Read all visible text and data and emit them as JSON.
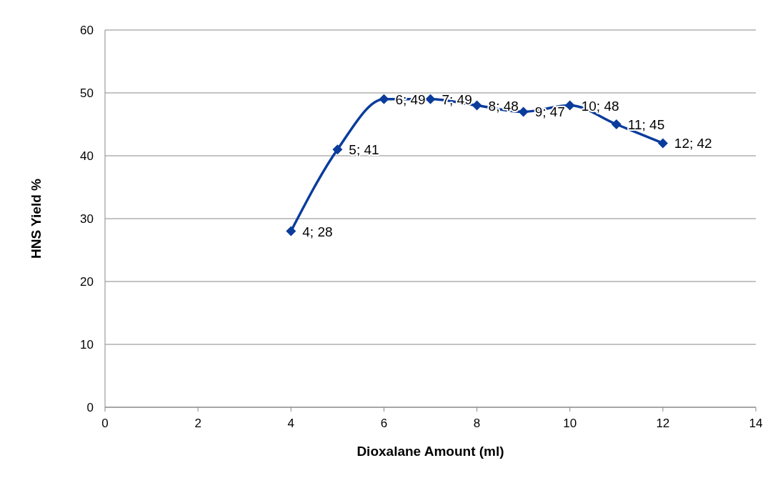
{
  "chart_data": {
    "type": "line",
    "xlabel": "Dioxalane  Amount (ml)",
    "ylabel": "HNS Yield %",
    "x": [
      4,
      5,
      6,
      7,
      8,
      9,
      10,
      11,
      12
    ],
    "series": [
      {
        "color": "#0b3c9c",
        "values": [
          28,
          41,
          49,
          49,
          48,
          47,
          48,
          45,
          42
        ],
        "value_labels": [
          "4; 28",
          "5; 41",
          "6; 49",
          "7; 49",
          "8; 48",
          "9; 47",
          "10; 48",
          "11; 45",
          "12; 42"
        ]
      }
    ],
    "xlim": [
      0,
      14
    ],
    "xticks": [
      0,
      2,
      4,
      6,
      8,
      10,
      12,
      14
    ],
    "ylim": [
      0,
      60
    ],
    "yticks": [
      0,
      10,
      20,
      30,
      40,
      50,
      60
    ],
    "grid": "y",
    "legend": false,
    "marker": "diamond",
    "line_style": "solid"
  }
}
